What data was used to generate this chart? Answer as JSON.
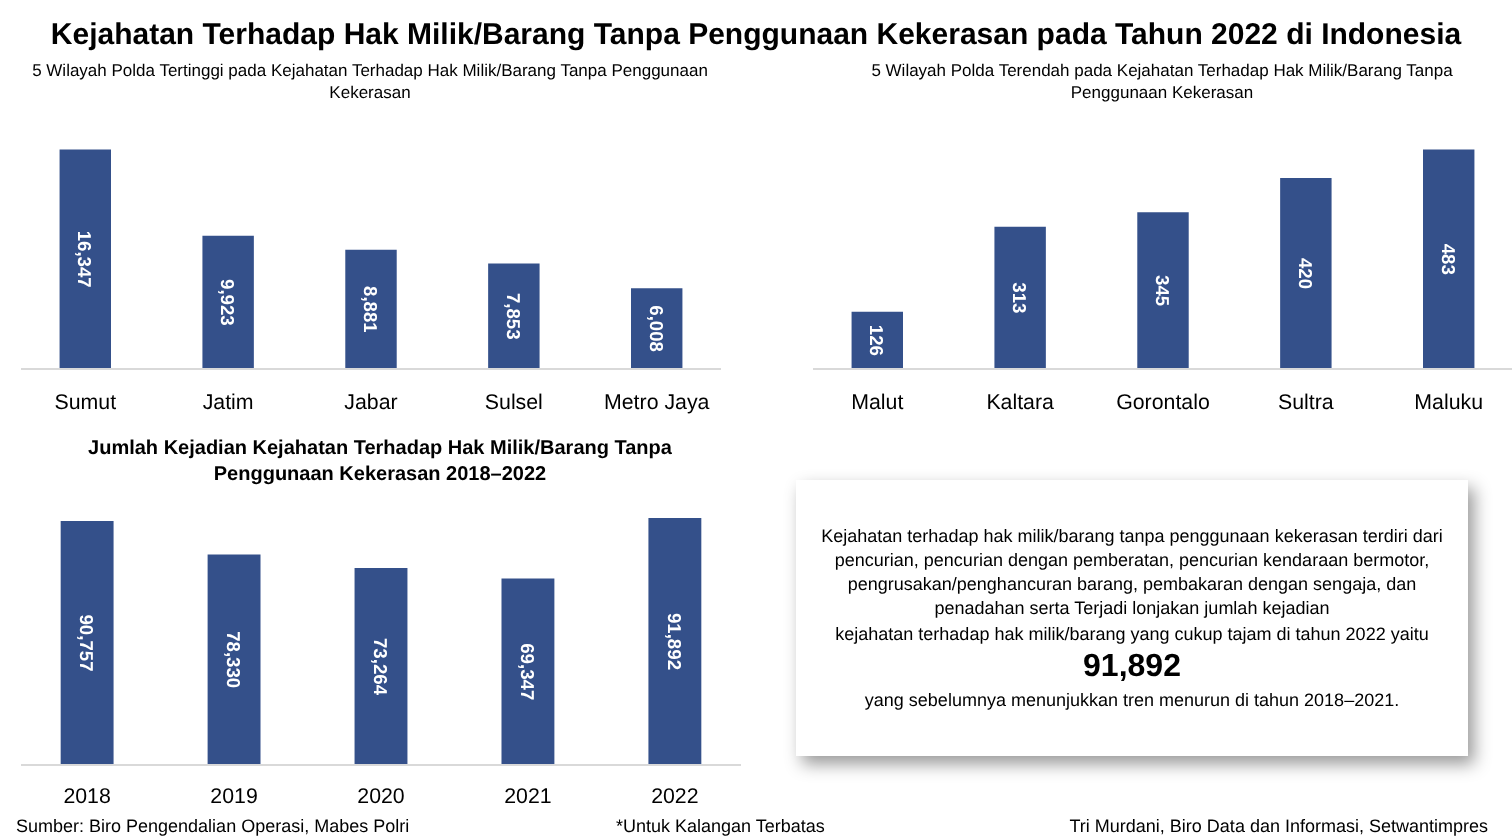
{
  "chart_data": [
    {
      "type": "other",
      "title": "Kejahatan Terhadap Hak Milik/Barang Tanpa Penggunaan Kekerasan pada Tahun 2022 di Indonesia",
      "annotations": [
        "Sumber: Biro Pengendalian Operasi, Mabes Polri",
        "*Untuk Kalangan Terbatas",
        "Tri Murdani, Biro Data dan Informasi, Setwantimpres"
      ]
    },
    {
      "type": "bar",
      "title": "5 Wilayah Polda Tertinggi pada Kejahatan Terhadap Hak Milik/Barang Tanpa Penggunaan Kekerasan",
      "categories": [
        "Sumut",
        "Jatim",
        "Jabar",
        "Sulsel",
        "Metro Jaya"
      ],
      "series": [
        {
          "type": "bar",
          "color": "#34508a",
          "values": [
            16347,
            9923,
            8881,
            7853,
            6008
          ],
          "value_labels": [
            "16,347",
            "9,923",
            "8,881",
            "7,853",
            "6,008"
          ]
        }
      ]
    },
    {
      "type": "bar",
      "title": "5 Wilayah Polda Terendah pada Kejahatan Terhadap Hak Milik/Barang Tanpa Penggunaan Kekerasan",
      "categories": [
        "Malut",
        "Kaltara",
        "Gorontalo",
        "Sultra",
        "Maluku"
      ],
      "series": [
        {
          "type": "bar",
          "color": "#34508a",
          "values": [
            126,
            313,
            345,
            420,
            483
          ],
          "value_labels": [
            "126",
            "313",
            "345",
            "420",
            "483"
          ]
        }
      ]
    },
    {
      "type": "bar",
      "title": "Jumlah Kejadian Kejahatan Terhadap Hak Milik/Barang Tanpa Penggunaan Kekerasan 2018–2022",
      "categories": [
        "2018",
        "2019",
        "2020",
        "2021",
        "2022"
      ],
      "series": [
        {
          "type": "bar",
          "color": "#34508a",
          "values": [
            90757,
            78330,
            73264,
            69347,
            91892
          ],
          "value_labels": [
            "90,757",
            "78,330",
            "73,264",
            "69,347",
            "91,892"
          ]
        }
      ]
    },
    {
      "type": "other",
      "annotations": [
        "Kejahatan terhadap hak milik/barang tanpa penggunaan kekerasan terdiri dari",
        "pencurian, pencurian dengan pemberatan, pencurian kendaraan bermotor,",
        "pengrusakan/penghancuran barang, pembakaran dengan sengaja, dan",
        "penadahan serta Terjadi lonjakan jumlah kejadian",
        "kejahatan terhadap hak milik/barang yang cukup tajam di tahun 2022 yaitu",
        "91,892",
        "yang sebelumnya menunjukkan tren menurun di tahun 2018–2021."
      ]
    }
  ]
}
